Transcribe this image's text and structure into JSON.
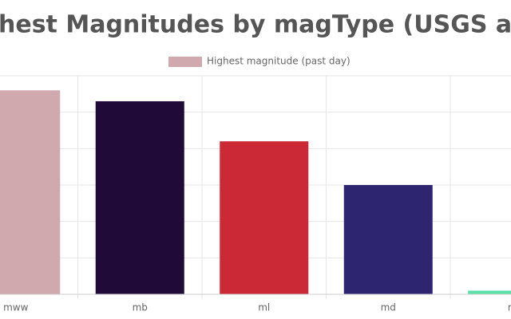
{
  "chart_data": {
    "type": "bar",
    "title": "hest Magnitudes by magType (USGS all d",
    "legend": "Highest magnitude (past day)",
    "categories": [
      "mww",
      "mb",
      "ml",
      "md",
      "m"
    ],
    "values": [
      5.6,
      5.3,
      4.2,
      3.0,
      0.1
    ],
    "colors": [
      "#d0a9ae",
      "#1f0a38",
      "#cc2936",
      "#2e2570",
      "#5ce0a8"
    ],
    "ylim": [
      0,
      6
    ],
    "yticks": [
      0,
      1,
      2,
      3,
      4,
      5,
      6
    ],
    "grid": true
  }
}
